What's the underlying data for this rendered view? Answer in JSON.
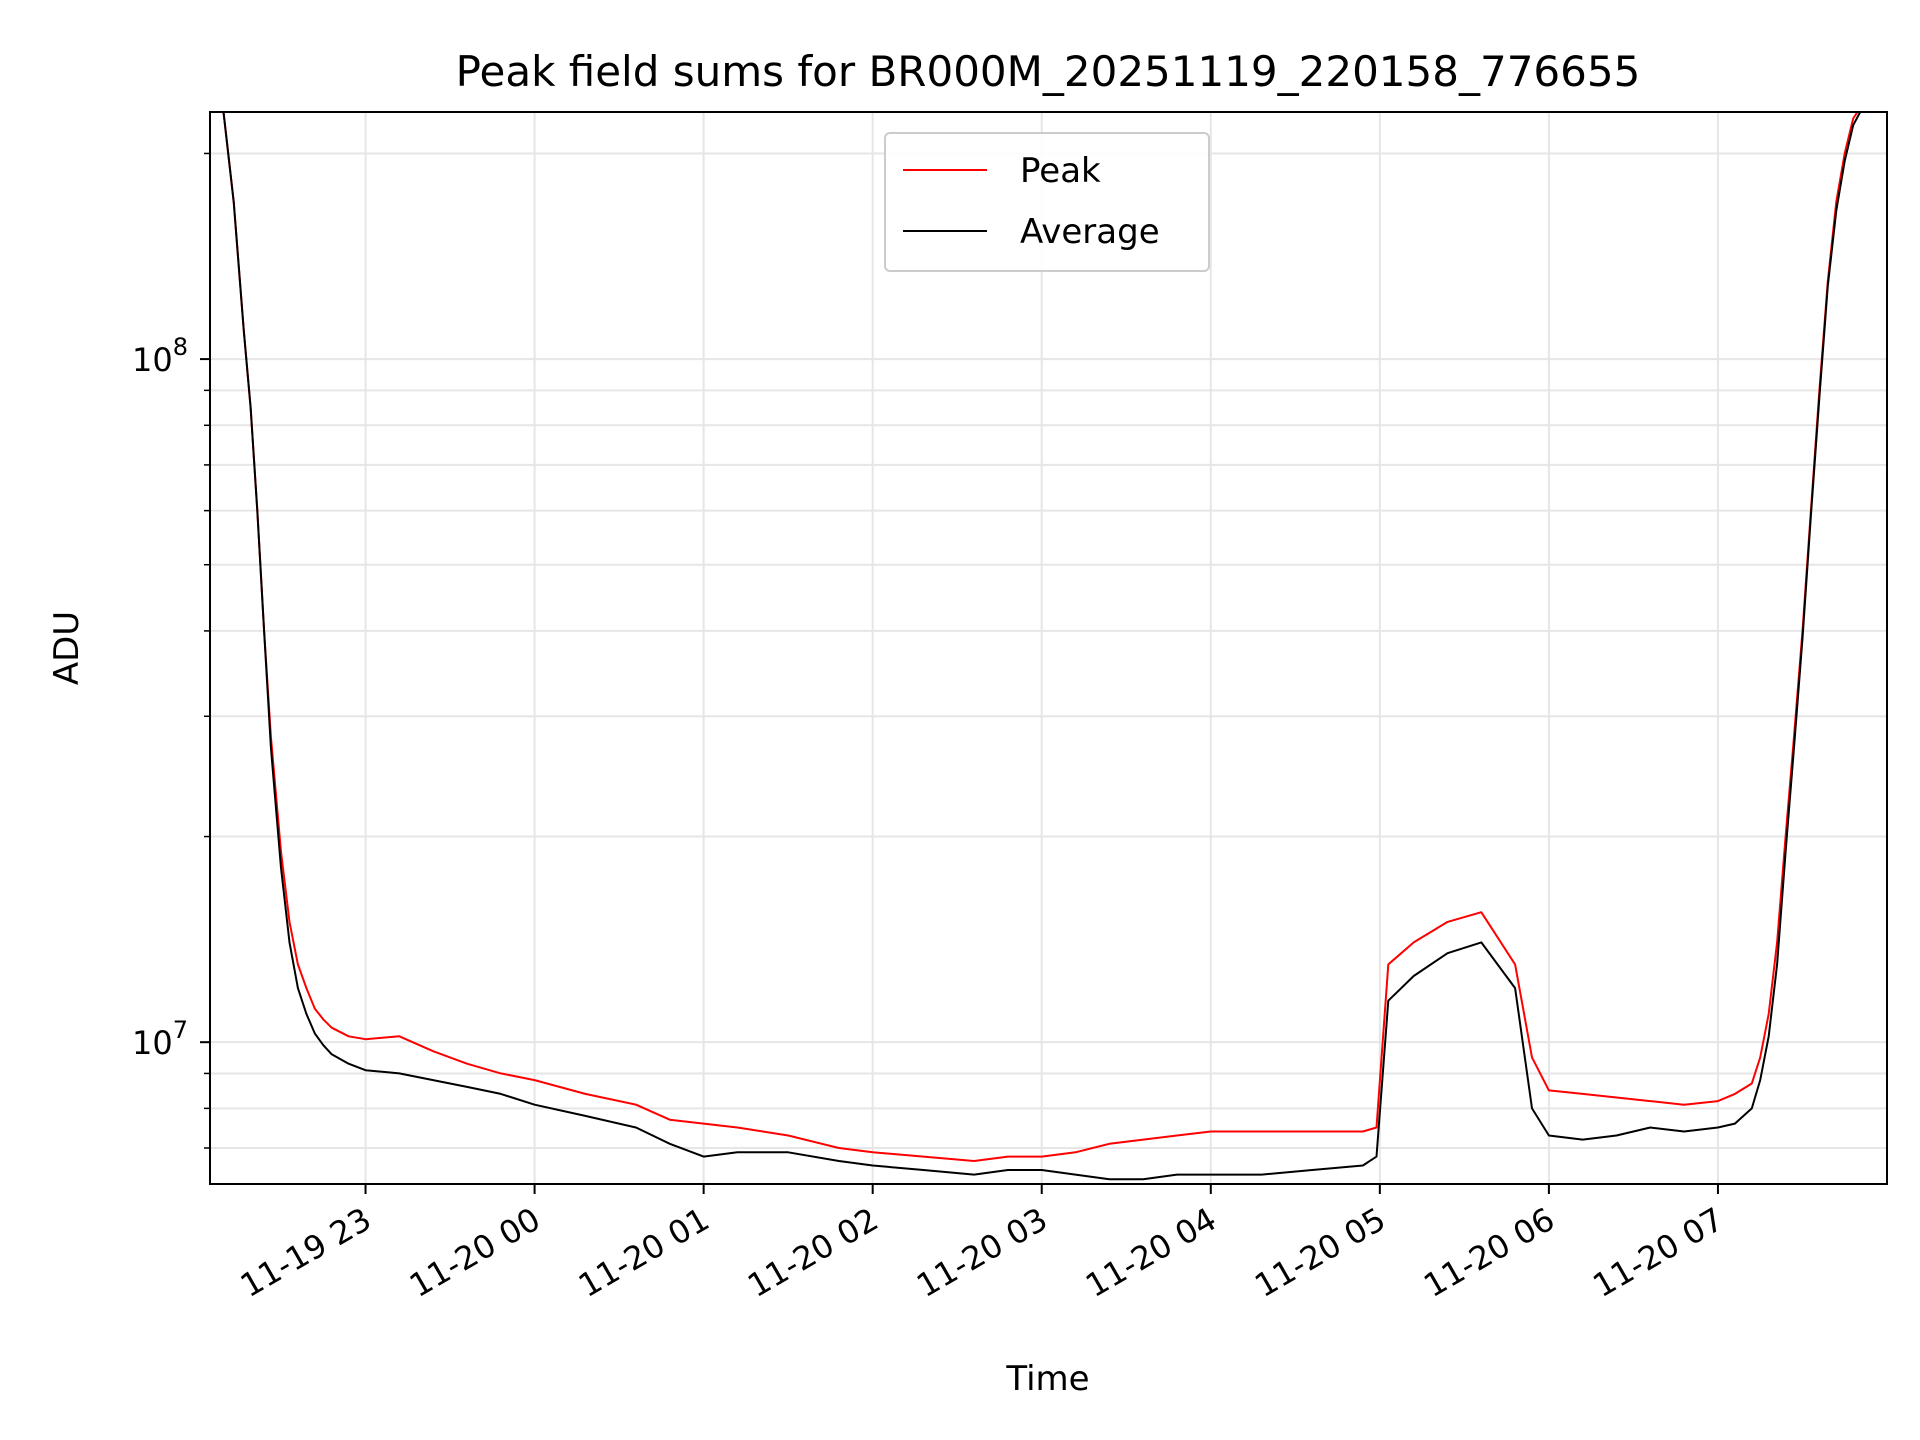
{
  "chart_data": {
    "type": "line",
    "title": "Peak field sums for BR000M_20251119_220158_776655",
    "xlabel": "Time",
    "ylabel": "ADU",
    "yscale": "log",
    "ylim": [
      6200000,
      230000000
    ],
    "xlim_hours": [
      -1.92,
      8.0
    ],
    "grid": true,
    "legend_position": "top-center",
    "x_ticks": [
      {
        "hour": -1,
        "label": "11-19 23"
      },
      {
        "hour": 0,
        "label": "11-20 00"
      },
      {
        "hour": 1,
        "label": "11-20 01"
      },
      {
        "hour": 2,
        "label": "11-20 02"
      },
      {
        "hour": 3,
        "label": "11-20 03"
      },
      {
        "hour": 4,
        "label": "11-20 04"
      },
      {
        "hour": 5,
        "label": "11-20 05"
      },
      {
        "hour": 6,
        "label": "11-20 06"
      },
      {
        "hour": 7,
        "label": "11-20 07"
      }
    ],
    "y_major_ticks": [
      {
        "value": 10000000,
        "base": "10",
        "exp": "7"
      },
      {
        "value": 100000000,
        "base": "10",
        "exp": "8"
      }
    ],
    "y_minor_ticks": [
      7000000,
      8000000,
      9000000,
      20000000,
      30000000,
      40000000,
      50000000,
      60000000,
      70000000,
      80000000,
      90000000,
      200000000
    ],
    "series": [
      {
        "name": "Peak",
        "color": "#ff0000",
        "x": [
          -1.84,
          -1.78,
          -1.72,
          -1.68,
          -1.64,
          -1.6,
          -1.56,
          -1.5,
          -1.45,
          -1.4,
          -1.35,
          -1.3,
          -1.25,
          -1.2,
          -1.1,
          -1.0,
          -0.8,
          -0.6,
          -0.4,
          -0.2,
          0.0,
          0.3,
          0.6,
          0.8,
          1.0,
          1.2,
          1.5,
          1.8,
          2.0,
          2.3,
          2.6,
          2.8,
          3.0,
          3.2,
          3.4,
          3.6,
          3.8,
          4.0,
          4.3,
          4.6,
          4.9,
          4.98,
          5.05,
          5.2,
          5.4,
          5.6,
          5.8,
          5.9,
          6.0,
          6.2,
          6.4,
          6.6,
          6.8,
          7.0,
          7.1,
          7.2,
          7.25,
          7.3,
          7.35,
          7.4,
          7.45,
          7.5,
          7.55,
          7.6,
          7.65,
          7.7,
          7.75,
          7.8,
          7.85
        ],
        "y": [
          230000000,
          170000000,
          110000000,
          85000000,
          60000000,
          40000000,
          28000000,
          19000000,
          15000000,
          13000000,
          12000000,
          11200000,
          10800000,
          10500000,
          10200000,
          10100000,
          10200000,
          9700000,
          9300000,
          9000000,
          8800000,
          8400000,
          8100000,
          7700000,
          7600000,
          7500000,
          7300000,
          7000000,
          6900000,
          6800000,
          6700000,
          6800000,
          6800000,
          6900000,
          7100000,
          7200000,
          7300000,
          7400000,
          7400000,
          7400000,
          7400000,
          7500000,
          13000000,
          14000000,
          15000000,
          15500000,
          13000000,
          9500000,
          8500000,
          8400000,
          8300000,
          8200000,
          8100000,
          8200000,
          8400000,
          8700000,
          9500000,
          11000000,
          14000000,
          20000000,
          28000000,
          40000000,
          60000000,
          90000000,
          130000000,
          170000000,
          200000000,
          225000000,
          235000000
        ]
      },
      {
        "name": "Average",
        "color": "#000000",
        "x": [
          -1.84,
          -1.78,
          -1.72,
          -1.68,
          -1.64,
          -1.6,
          -1.56,
          -1.5,
          -1.45,
          -1.4,
          -1.35,
          -1.3,
          -1.25,
          -1.2,
          -1.1,
          -1.0,
          -0.8,
          -0.6,
          -0.4,
          -0.2,
          0.0,
          0.3,
          0.6,
          0.8,
          1.0,
          1.2,
          1.5,
          1.8,
          2.0,
          2.3,
          2.6,
          2.8,
          3.0,
          3.2,
          3.4,
          3.6,
          3.8,
          4.0,
          4.3,
          4.6,
          4.9,
          4.98,
          5.05,
          5.2,
          5.4,
          5.6,
          5.8,
          5.9,
          6.0,
          6.2,
          6.4,
          6.6,
          6.8,
          7.0,
          7.1,
          7.2,
          7.25,
          7.3,
          7.35,
          7.4,
          7.45,
          7.5,
          7.55,
          7.6,
          7.65,
          7.7,
          7.75,
          7.8,
          7.85
        ],
        "y": [
          230000000,
          170000000,
          110000000,
          85000000,
          60000000,
          40000000,
          27000000,
          18000000,
          14000000,
          12000000,
          11000000,
          10300000,
          9900000,
          9600000,
          9300000,
          9100000,
          9000000,
          8800000,
          8600000,
          8400000,
          8100000,
          7800000,
          7500000,
          7100000,
          6800000,
          6900000,
          6900000,
          6700000,
          6600000,
          6500000,
          6400000,
          6500000,
          6500000,
          6400000,
          6300000,
          6300000,
          6400000,
          6400000,
          6400000,
          6500000,
          6600000,
          6800000,
          11500000,
          12500000,
          13500000,
          14000000,
          12000000,
          8000000,
          7300000,
          7200000,
          7300000,
          7500000,
          7400000,
          7500000,
          7600000,
          8000000,
          8800000,
          10200000,
          13000000,
          19000000,
          27000000,
          39000000,
          59000000,
          88000000,
          128000000,
          165000000,
          195000000,
          220000000,
          232000000
        ]
      }
    ]
  }
}
